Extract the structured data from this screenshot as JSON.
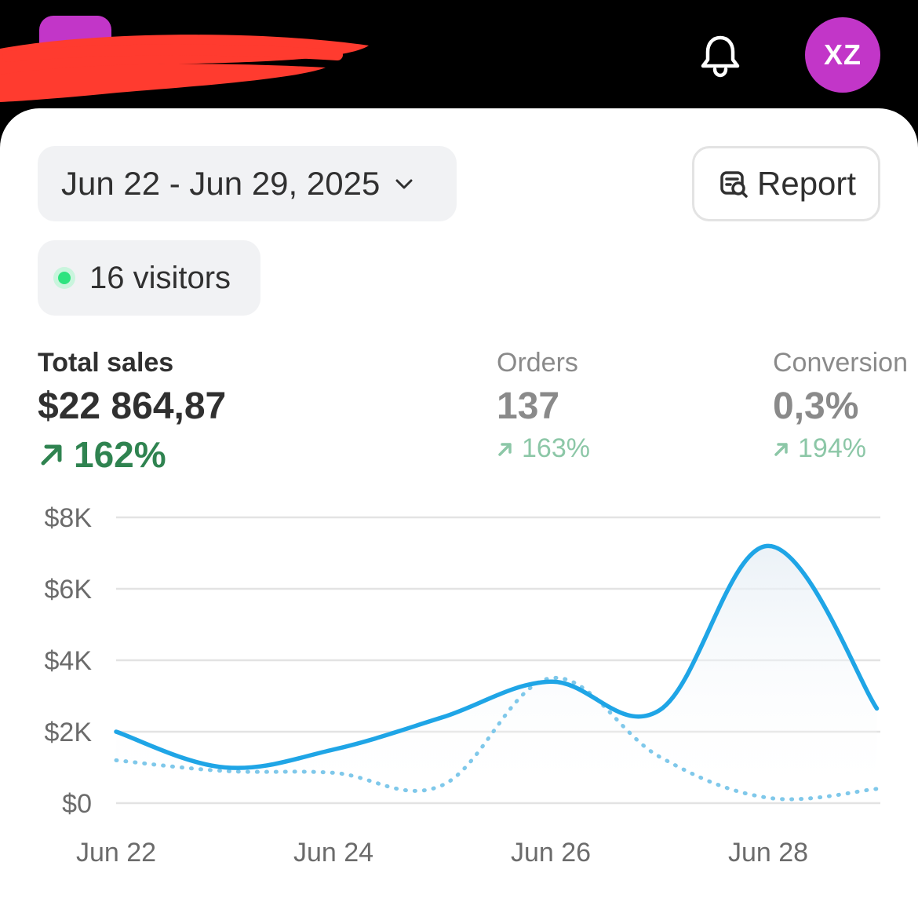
{
  "header": {
    "avatar_initials": "XZ",
    "icons": [
      "app-logo",
      "bell-icon"
    ],
    "brand_color": "#c236c8"
  },
  "filters": {
    "date_range": "Jun 22 - Jun 29, 2025",
    "report_label": "Report",
    "visitors_label": "16 visitors"
  },
  "metrics": {
    "total_sales": {
      "label": "Total sales",
      "value": "$22 864,87",
      "change": "162%"
    },
    "orders": {
      "label": "Orders",
      "value": "137",
      "change": "163%"
    },
    "conversion": {
      "label": "Conversion",
      "value": "0,3%",
      "change": "194%"
    }
  },
  "colors": {
    "current_series": "#1fa5e6",
    "comparison_series": "#7fc8ea",
    "positive": "#2f8350",
    "live_dot": "#2ee37f"
  },
  "chart_data": {
    "type": "line",
    "x": [
      "Jun 22",
      "Jun 23",
      "Jun 24",
      "Jun 25",
      "Jun 26",
      "Jun 27",
      "Jun 28",
      "Jun 29"
    ],
    "x_tick_labels": [
      "Jun 22",
      "Jun 24",
      "Jun 26",
      "Jun 28"
    ],
    "y_tick_labels": [
      "$8K",
      "$6K",
      "$4K",
      "$2K",
      "$0"
    ],
    "ylim": [
      0,
      8000
    ],
    "grid": true,
    "series": [
      {
        "style": "solid",
        "values": [
          2000,
          1000,
          1500,
          2400,
          3400,
          2600,
          7200,
          2650
        ]
      },
      {
        "style": "dotted",
        "values": [
          1200,
          900,
          850,
          500,
          3500,
          1300,
          150,
          400
        ]
      }
    ]
  }
}
